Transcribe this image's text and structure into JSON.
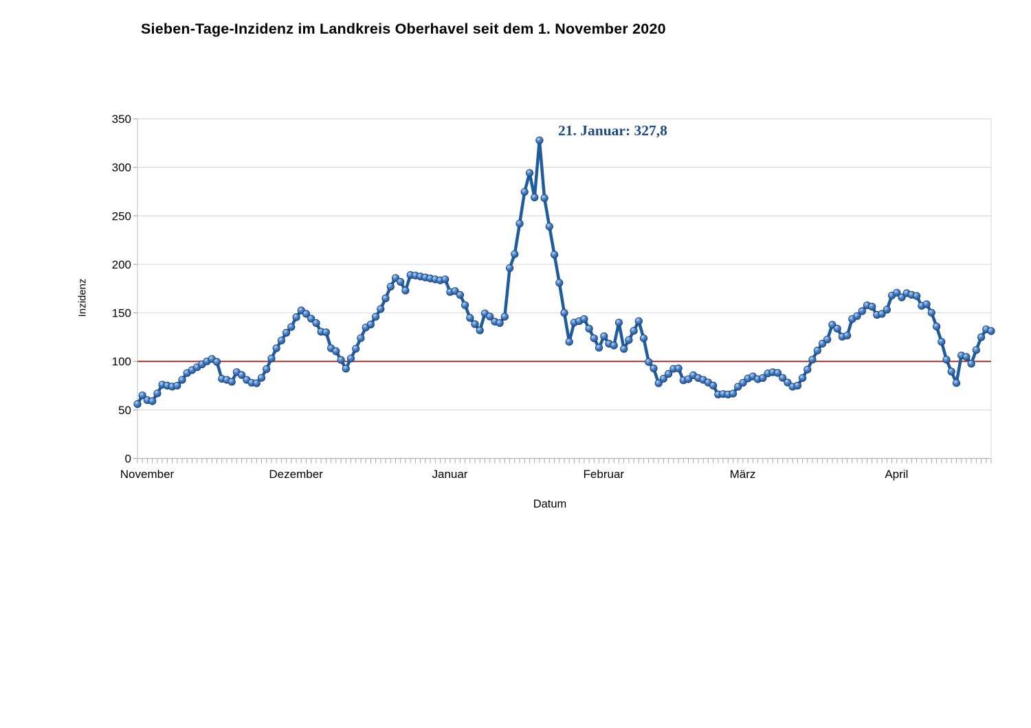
{
  "title": "Sieben-Tage-Inzidenz im Landkreis Oberhavel seit dem 1. November 2020",
  "chart_data": {
    "type": "line",
    "title": "Sieben-Tage-Inzidenz im Landkreis Oberhavel seit dem 1. November 2020",
    "xlabel": "Datum",
    "ylabel": "Inzidenz",
    "ylim": [
      0,
      350
    ],
    "y_ticks": [
      0,
      50,
      100,
      150,
      200,
      250,
      300,
      350
    ],
    "grid": "horizontal",
    "legend": "none",
    "months": [
      {
        "label": "November",
        "days": 30
      },
      {
        "label": "Dezember",
        "days": 31
      },
      {
        "label": "Januar",
        "days": 31
      },
      {
        "label": "Februar",
        "days": 28
      },
      {
        "label": "März",
        "days": 31
      },
      {
        "label": "April",
        "days": 22
      }
    ],
    "reference_line": {
      "value": 100,
      "color": "#953735"
    },
    "annotation": {
      "text": "21. Januar: 327,8",
      "point_index": 81,
      "value": 327.8,
      "color": "#1f497d"
    },
    "series": [
      {
        "name": "Inzidenz",
        "color": "#1f5c9e",
        "marker_fill": "#4a7ec5",
        "values": [
          56,
          65,
          60,
          59,
          67,
          76,
          75,
          74,
          75,
          81,
          88,
          91,
          94,
          97,
          100,
          102.5,
          99.5,
          82,
          81,
          79,
          89,
          86,
          81,
          78,
          77.5,
          83,
          92,
          103,
          113.5,
          121.5,
          129.5,
          135.5,
          145.5,
          152.5,
          149,
          144,
          139.5,
          130.5,
          130,
          113.5,
          110.5,
          101.5,
          92.5,
          103,
          113,
          124,
          135,
          138,
          146,
          154,
          165,
          177,
          186,
          182,
          173,
          189,
          188.5,
          187.5,
          186.5,
          185.5,
          184.5,
          183.5,
          184.5,
          171.5,
          172.5,
          168.5,
          158,
          144.8,
          138.4,
          132,
          149.5,
          146.2,
          141,
          139.5,
          146,
          196.2,
          210.5,
          242,
          274.7,
          294.2,
          269,
          327.8,
          268.3,
          239,
          210,
          181,
          150,
          120.2,
          140,
          141.5,
          143.6,
          133.7,
          123.8,
          114.1,
          125.9,
          118.3,
          116.4,
          140,
          112.9,
          122,
          131.5,
          141.5,
          123.8,
          99.4,
          92.8,
          77.5,
          82.2,
          87.1,
          92.3,
          92.8,
          80.5,
          81.7,
          85.7,
          82.9,
          81,
          78.2,
          75.1,
          65.9,
          66.4,
          65.9,
          66.8,
          73.9,
          78,
          82.4,
          84.5,
          81.7,
          82.9,
          87.6,
          88.8,
          88.1,
          83,
          78.2,
          73.9,
          75,
          82.9,
          91.6,
          101.8,
          111.2,
          118.3,
          122.6,
          137.7,
          133.7,
          125.4,
          126.6,
          143.6,
          146.7,
          151.8,
          157.8,
          156.4,
          147.9,
          149,
          153.3,
          167.9,
          170.8,
          166,
          170.3,
          168.6,
          167.4,
          157.3,
          158.9,
          150.2,
          136,
          120.2,
          101.8,
          89.5,
          77.7,
          106.1,
          104.6,
          97.6,
          111.7,
          124.9,
          133,
          131.3
        ]
      }
    ]
  }
}
